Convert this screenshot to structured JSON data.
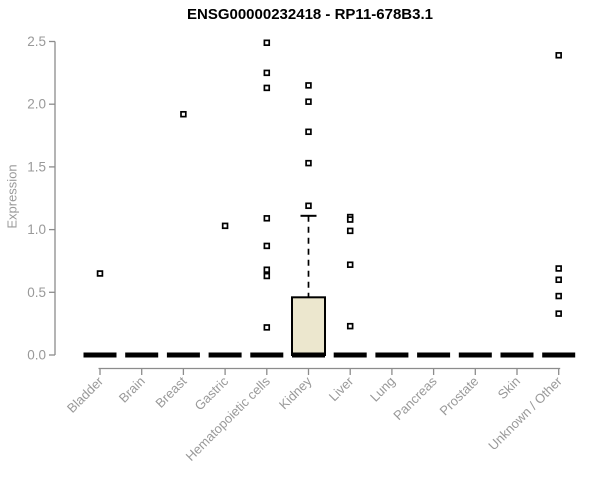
{
  "chart_data": {
    "type": "box",
    "title": "ENSG00000232418 - RP11-678B3.1",
    "xlabel": "",
    "ylabel": "Expression",
    "ylim": [
      0,
      2.5
    ],
    "yticks": [
      0.0,
      0.5,
      1.0,
      1.5,
      2.0,
      2.5
    ],
    "grid": "off",
    "legend": "none",
    "categories": [
      "Bladder",
      "Brain",
      "Breast",
      "Gastric",
      "Hematopoietic cells",
      "Kidney",
      "Liver",
      "Lung",
      "Pancreas",
      "Prostate",
      "Skin",
      "Unknown / Other"
    ],
    "boxes": [
      {
        "category": "Bladder",
        "q1": 0,
        "median": 0,
        "q3": 0,
        "whisker_low": 0,
        "whisker_high": 0,
        "outliers": [
          0.65
        ]
      },
      {
        "category": "Brain",
        "q1": 0,
        "median": 0,
        "q3": 0,
        "whisker_low": 0,
        "whisker_high": 0,
        "outliers": []
      },
      {
        "category": "Breast",
        "q1": 0,
        "median": 0,
        "q3": 0,
        "whisker_low": 0,
        "whisker_high": 0,
        "outliers": [
          1.92
        ]
      },
      {
        "category": "Gastric",
        "q1": 0,
        "median": 0,
        "q3": 0,
        "whisker_low": 0,
        "whisker_high": 0,
        "outliers": [
          1.03
        ]
      },
      {
        "category": "Hematopoietic cells",
        "q1": 0,
        "median": 0,
        "q3": 0,
        "whisker_low": 0,
        "whisker_high": 0,
        "outliers": [
          2.49,
          2.25,
          2.13,
          1.09,
          0.87,
          0.68,
          0.63,
          0.22
        ]
      },
      {
        "category": "Kidney",
        "q1": 0,
        "median": 0,
        "q3": 0.46,
        "whisker_low": 0,
        "whisker_high": 1.11,
        "outliers": [
          2.15,
          2.02,
          1.78,
          1.53,
          1.19
        ]
      },
      {
        "category": "Liver",
        "q1": 0,
        "median": 0,
        "q3": 0,
        "whisker_low": 0,
        "whisker_high": 0,
        "outliers": [
          1.1,
          1.08,
          0.99,
          0.72,
          0.23
        ]
      },
      {
        "category": "Lung",
        "q1": 0,
        "median": 0,
        "q3": 0,
        "whisker_low": 0,
        "whisker_high": 0,
        "outliers": []
      },
      {
        "category": "Pancreas",
        "q1": 0,
        "median": 0,
        "q3": 0,
        "whisker_low": 0,
        "whisker_high": 0,
        "outliers": []
      },
      {
        "category": "Prostate",
        "q1": 0,
        "median": 0,
        "q3": 0,
        "whisker_low": 0,
        "whisker_high": 0,
        "outliers": []
      },
      {
        "category": "Skin",
        "q1": 0,
        "median": 0,
        "q3": 0,
        "whisker_low": 0,
        "whisker_high": 0,
        "outliers": []
      },
      {
        "category": "Unknown / Other",
        "q1": 0,
        "median": 0,
        "q3": 0,
        "whisker_low": 0,
        "whisker_high": 0,
        "outliers": [
          2.39,
          0.69,
          0.6,
          0.47,
          0.33
        ]
      }
    ],
    "colors": {
      "box_fill": "#ece7ce",
      "box_border": "#000000",
      "median": "#000000",
      "outlier": "#000000",
      "axis": "#8c8c8c",
      "tick_label": "#999999",
      "title": "#000000"
    }
  }
}
